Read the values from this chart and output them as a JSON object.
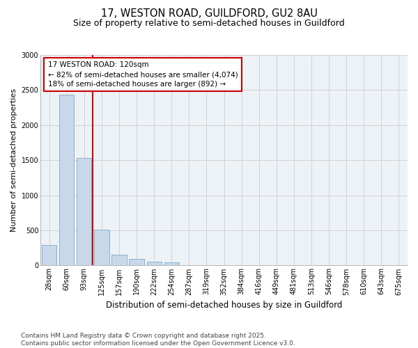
{
  "title_line1": "17, WESTON ROAD, GUILDFORD, GU2 8AU",
  "title_line2": "Size of property relative to semi-detached houses in Guildford",
  "xlabel": "Distribution of semi-detached houses by size in Guildford",
  "ylabel": "Number of semi-detached properties",
  "categories": [
    "28sqm",
    "60sqm",
    "93sqm",
    "125sqm",
    "157sqm",
    "190sqm",
    "222sqm",
    "254sqm",
    "287sqm",
    "319sqm",
    "352sqm",
    "384sqm",
    "416sqm",
    "449sqm",
    "481sqm",
    "513sqm",
    "546sqm",
    "578sqm",
    "610sqm",
    "643sqm",
    "675sqm"
  ],
  "values": [
    290,
    2430,
    1530,
    510,
    150,
    90,
    55,
    40,
    0,
    0,
    0,
    0,
    0,
    0,
    0,
    0,
    0,
    0,
    0,
    0,
    0
  ],
  "bar_color": "#c8d8ea",
  "bar_edge_color": "#7aaac8",
  "vline_color": "#cc0000",
  "vline_x_index": 3,
  "annotation_text": "17 WESTON ROAD: 120sqm\n← 82% of semi-detached houses are smaller (4,074)\n18% of semi-detached houses are larger (892) →",
  "annotation_box_edgecolor": "#cc0000",
  "ylim": [
    0,
    3000
  ],
  "yticks": [
    0,
    500,
    1000,
    1500,
    2000,
    2500,
    3000
  ],
  "grid_color": "#cccccc",
  "plot_bg_color": "#edf2f7",
  "footer_line1": "Contains HM Land Registry data © Crown copyright and database right 2025.",
  "footer_line2": "Contains public sector information licensed under the Open Government Licence v3.0.",
  "title_fontsize": 10.5,
  "subtitle_fontsize": 9,
  "ylabel_fontsize": 8,
  "xlabel_fontsize": 8.5,
  "tick_fontsize": 7,
  "annotation_fontsize": 7.5,
  "footer_fontsize": 6.5
}
